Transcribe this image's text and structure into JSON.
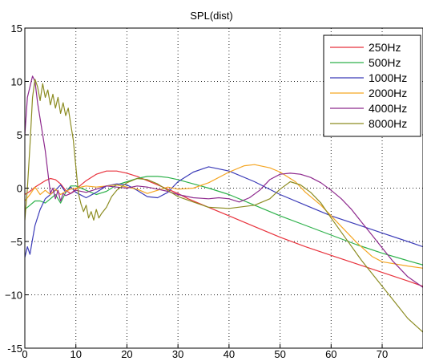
{
  "chart_data": {
    "type": "line",
    "title": "SPL(dist)",
    "xlabel": "",
    "ylabel": "",
    "xlim": [
      0,
      78
    ],
    "ylim": [
      -15,
      15
    ],
    "xticks": [
      0,
      10,
      20,
      30,
      40,
      50,
      60,
      70
    ],
    "yticks": [
      -15,
      -10,
      -5,
      0,
      5,
      10,
      15
    ],
    "ytick_labels": [
      "-15",
      "−10",
      "−5",
      "0",
      "5",
      "10",
      "15"
    ],
    "grid": true,
    "legend_position": "top-right",
    "series": [
      {
        "name": "250Hz",
        "color": "#e8323c",
        "x": [
          0,
          1,
          2,
          3,
          4,
          5,
          6,
          7,
          8,
          9,
          10,
          12,
          14,
          16,
          18,
          20,
          22,
          24,
          26,
          28,
          30,
          32,
          35,
          40,
          45,
          50,
          55,
          60,
          65,
          70,
          75,
          78
        ],
        "y": [
          -0.6,
          -0.3,
          0.1,
          0.4,
          0.7,
          0.9,
          0.8,
          0.4,
          -0.2,
          -0.5,
          -0.1,
          0.7,
          1.3,
          1.6,
          1.6,
          1.4,
          1.1,
          0.7,
          0.3,
          -0.1,
          -0.5,
          -1.0,
          -1.6,
          -2.6,
          -3.6,
          -4.6,
          -5.5,
          -6.3,
          -7.1,
          -7.9,
          -8.7,
          -9.2
        ]
      },
      {
        "name": "500Hz",
        "color": "#2db14a",
        "x": [
          0,
          1,
          2,
          3,
          4,
          5,
          6,
          7,
          8,
          9,
          10,
          12,
          14,
          16,
          18,
          20,
          22,
          24,
          26,
          28,
          30,
          33,
          36,
          40,
          45,
          50,
          55,
          60,
          65,
          70,
          75,
          78
        ],
        "y": [
          -2.0,
          -1.6,
          -1.2,
          -1.2,
          -1.4,
          -1.0,
          -0.6,
          -1.4,
          -0.4,
          0.2,
          0.2,
          -0.2,
          -0.6,
          -0.3,
          0.3,
          0.6,
          0.9,
          1.1,
          1.1,
          1.0,
          0.8,
          0.4,
          0.0,
          -0.6,
          -1.6,
          -2.6,
          -3.5,
          -4.4,
          -5.3,
          -6.1,
          -6.8,
          -7.2
        ]
      },
      {
        "name": "1000Hz",
        "color": "#3b3bb8",
        "x": [
          0,
          0.5,
          1,
          1.5,
          2,
          3,
          4,
          5,
          6,
          7,
          8,
          9,
          10,
          12,
          14,
          16,
          18,
          20,
          22,
          24,
          26,
          28,
          30,
          33,
          36,
          40,
          45,
          50,
          55,
          60,
          65,
          70,
          75,
          78
        ],
        "y": [
          -6.5,
          -5.5,
          -6.2,
          -4.8,
          -3.5,
          -2.0,
          -1.0,
          -0.6,
          -0.2,
          0.3,
          -0.4,
          0.1,
          -0.4,
          -0.9,
          -0.4,
          0.2,
          0.4,
          0.3,
          -0.2,
          -0.8,
          -0.9,
          -0.4,
          0.6,
          1.5,
          2.0,
          1.6,
          0.6,
          -0.6,
          -1.6,
          -2.6,
          -3.4,
          -4.2,
          -5.0,
          -5.5
        ]
      },
      {
        "name": "2000Hz",
        "color": "#f5a623",
        "x": [
          0,
          1,
          2,
          3,
          4,
          5,
          6,
          7,
          8,
          9,
          10,
          12,
          14,
          16,
          18,
          20,
          22,
          24,
          26,
          28,
          30,
          33,
          36,
          40,
          43,
          45,
          48,
          50,
          53,
          55,
          58,
          60,
          62,
          65,
          68,
          70,
          75,
          78
        ],
        "y": [
          -1.2,
          -0.6,
          0.1,
          -0.6,
          -0.2,
          -0.6,
          -0.1,
          -0.6,
          -0.3,
          -0.1,
          0.0,
          0.2,
          0.1,
          0.2,
          0.3,
          0.1,
          -0.1,
          -0.5,
          -0.2,
          0.1,
          -0.1,
          0.0,
          0.5,
          1.5,
          2.1,
          2.2,
          1.9,
          1.5,
          0.6,
          -0.4,
          -1.6,
          -2.6,
          -3.6,
          -5.1,
          -6.4,
          -6.9,
          -7.3,
          -7.5
        ]
      },
      {
        "name": "4000Hz",
        "color": "#8e2a8e",
        "x": [
          0,
          0.5,
          1,
          1.5,
          2,
          2.5,
          3,
          3.5,
          4,
          4.5,
          5,
          5.5,
          6,
          6.5,
          7,
          7.5,
          8,
          9,
          10,
          12,
          14,
          16,
          18,
          20,
          22,
          24,
          26,
          28,
          30,
          33,
          36,
          38,
          40,
          42,
          44,
          46,
          48,
          50,
          52,
          54,
          56,
          58,
          60,
          62,
          64,
          66,
          68,
          70,
          72,
          75,
          78
        ],
        "y": [
          5.0,
          8.5,
          9.5,
          10.5,
          10.0,
          8.0,
          6.5,
          5.0,
          3.5,
          1.5,
          -0.5,
          0.0,
          -1.0,
          -0.2,
          -1.2,
          -0.5,
          -0.7,
          -0.5,
          -0.2,
          -0.4,
          -0.1,
          0.2,
          0.1,
          0.0,
          0.2,
          0.1,
          -0.1,
          -0.3,
          -0.6,
          -0.9,
          -1.0,
          -0.9,
          -1.0,
          -1.3,
          -0.9,
          -0.2,
          0.8,
          1.3,
          1.4,
          1.3,
          1.0,
          0.5,
          -0.2,
          -1.0,
          -2.0,
          -3.2,
          -4.4,
          -5.6,
          -6.8,
          -8.3,
          -9.3
        ]
      },
      {
        "name": "8000Hz",
        "color": "#8c8c22",
        "x": [
          0,
          0.5,
          1,
          1.5,
          2,
          2.5,
          3,
          3.5,
          4,
          4.5,
          5,
          5.5,
          6,
          6.5,
          7,
          7.5,
          8,
          8.5,
          9,
          9.5,
          10,
          10.5,
          11,
          11.5,
          12,
          12.5,
          13,
          13.5,
          14,
          14.5,
          15,
          16,
          17,
          18,
          20,
          22,
          24,
          26,
          28,
          30,
          33,
          36,
          40,
          45,
          48,
          50,
          52,
          54,
          56,
          58,
          60,
          63,
          66,
          69,
          72,
          75,
          78
        ],
        "y": [
          -3.0,
          0.0,
          4.0,
          8.5,
          10.2,
          9.5,
          8.2,
          9.8,
          8.5,
          9.2,
          7.8,
          8.8,
          7.5,
          8.5,
          7.0,
          8.0,
          6.8,
          7.5,
          6.0,
          4.5,
          2.0,
          -0.5,
          -1.5,
          -2.2,
          -1.6,
          -2.8,
          -2.2,
          -3.0,
          -2.0,
          -2.8,
          -2.4,
          -1.8,
          -0.8,
          -0.2,
          0.5,
          0.9,
          0.8,
          0.4,
          -0.2,
          -0.8,
          -1.3,
          -1.8,
          -1.9,
          -1.6,
          -1.0,
          -0.1,
          0.6,
          0.3,
          -0.4,
          -1.4,
          -2.8,
          -4.8,
          -6.8,
          -8.6,
          -10.4,
          -12.2,
          -13.5
        ]
      }
    ]
  }
}
